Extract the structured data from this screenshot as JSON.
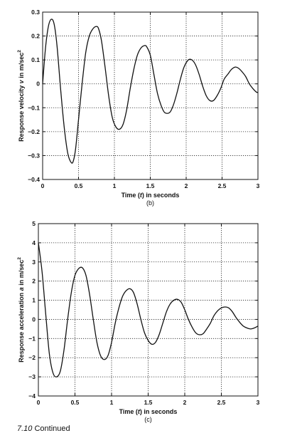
{
  "chart_data": [
    {
      "type": "line",
      "id": "b",
      "xlabel_prefix": "Time (",
      "xlabel_var": "t",
      "xlabel_suffix": ") in seconds",
      "sublabel": "(b)",
      "ylabel_prefix": "Response velocity ",
      "ylabel_var": "v",
      "ylabel_suffix": " in m/sec",
      "ylabel_sup": "2",
      "xlim": [
        0,
        3
      ],
      "ylim": [
        -0.4,
        0.3
      ],
      "xticks": [
        0,
        0.5,
        1,
        1.5,
        2,
        2.5,
        3
      ],
      "xticklabels": [
        "0",
        "0.5",
        "1",
        "1.5",
        "2",
        "2.5",
        "3"
      ],
      "yticks": [
        -0.4,
        -0.3,
        -0.2,
        -0.1,
        0,
        0.1,
        0.2,
        0.3
      ],
      "yticklabels": [
        "−0.4",
        "−0.3",
        "−0.2",
        "−0.1",
        "0",
        "0.1",
        "0.2",
        "0.3"
      ],
      "grid": true,
      "series": [
        {
          "x": [
            0,
            0.04,
            0.08,
            0.12,
            0.16,
            0.2,
            0.25,
            0.3,
            0.35,
            0.4,
            0.43,
            0.46,
            0.5,
            0.55,
            0.6,
            0.65,
            0.7,
            0.75,
            0.78,
            0.82,
            0.87,
            0.92,
            0.97,
            1.02,
            1.07,
            1.12,
            1.17,
            1.22,
            1.27,
            1.32,
            1.37,
            1.42,
            1.45,
            1.5,
            1.55,
            1.6,
            1.65,
            1.7,
            1.77,
            1.82,
            1.87,
            1.92,
            1.97,
            2.03,
            2.08,
            2.13,
            2.18,
            2.23,
            2.28,
            2.33,
            2.38,
            2.43,
            2.48,
            2.53,
            2.58,
            2.63,
            2.68,
            2.73,
            2.78,
            2.83,
            2.88,
            2.93,
            2.98,
            3.0
          ],
          "y": [
            0.0,
            0.15,
            0.24,
            0.27,
            0.25,
            0.16,
            -0.02,
            -0.18,
            -0.29,
            -0.33,
            -0.32,
            -0.27,
            -0.15,
            0.0,
            0.13,
            0.2,
            0.23,
            0.24,
            0.23,
            0.18,
            0.07,
            -0.05,
            -0.14,
            -0.18,
            -0.19,
            -0.17,
            -0.11,
            -0.02,
            0.06,
            0.12,
            0.15,
            0.16,
            0.155,
            0.12,
            0.04,
            -0.04,
            -0.09,
            -0.12,
            -0.12,
            -0.09,
            -0.04,
            0.02,
            0.07,
            0.1,
            0.1,
            0.08,
            0.04,
            -0.01,
            -0.05,
            -0.07,
            -0.07,
            -0.05,
            -0.02,
            0.02,
            0.04,
            0.06,
            0.07,
            0.065,
            0.05,
            0.03,
            0.0,
            -0.02,
            -0.035,
            -0.035
          ]
        }
      ]
    },
    {
      "type": "line",
      "id": "c",
      "xlabel_prefix": "Time (",
      "xlabel_var": "t",
      "xlabel_suffix": ") in seconds",
      "sublabel": "(c)",
      "ylabel_prefix": "Response acceleration ",
      "ylabel_var": "a",
      "ylabel_suffix": " in m/sec",
      "ylabel_sup": "2",
      "xlim": [
        0,
        3
      ],
      "ylim": [
        -4,
        5
      ],
      "xticks": [
        0,
        0.5,
        1,
        1.5,
        2,
        2.5,
        3
      ],
      "xticklabels": [
        "0",
        "0.5",
        "1",
        "1.5",
        "2",
        "2.5",
        "3"
      ],
      "yticks": [
        -4,
        -3,
        -2,
        -1,
        0,
        1,
        2,
        3,
        4,
        5
      ],
      "yticklabels": [
        "−4",
        "−3",
        "−2",
        "−1",
        "0",
        "1",
        "2",
        "3",
        "4",
        "5"
      ],
      "grid": true,
      "series": [
        {
          "x": [
            0,
            0.05,
            0.1,
            0.15,
            0.2,
            0.25,
            0.3,
            0.35,
            0.4,
            0.45,
            0.5,
            0.55,
            0.6,
            0.65,
            0.7,
            0.75,
            0.8,
            0.85,
            0.9,
            0.95,
            1.0,
            1.05,
            1.1,
            1.15,
            1.2,
            1.25,
            1.3,
            1.35,
            1.4,
            1.45,
            1.5,
            1.55,
            1.6,
            1.65,
            1.7,
            1.75,
            1.8,
            1.85,
            1.9,
            1.95,
            2.0,
            2.05,
            2.1,
            2.15,
            2.2,
            2.25,
            2.3,
            2.35,
            2.4,
            2.45,
            2.5,
            2.55,
            2.6,
            2.65,
            2.7,
            2.75,
            2.8,
            2.85,
            2.9,
            2.95,
            3.0
          ],
          "y": [
            4.0,
            2.5,
            0.3,
            -1.8,
            -2.8,
            -3.0,
            -2.7,
            -1.6,
            0.0,
            1.4,
            2.3,
            2.65,
            2.7,
            2.3,
            1.3,
            0.0,
            -1.2,
            -1.9,
            -2.1,
            -1.9,
            -1.2,
            -0.2,
            0.6,
            1.2,
            1.5,
            1.6,
            1.4,
            0.8,
            0.0,
            -0.7,
            -1.1,
            -1.3,
            -1.2,
            -0.8,
            -0.2,
            0.4,
            0.8,
            1.0,
            1.05,
            0.9,
            0.5,
            0.0,
            -0.4,
            -0.7,
            -0.8,
            -0.75,
            -0.5,
            -0.2,
            0.2,
            0.45,
            0.6,
            0.65,
            0.6,
            0.4,
            0.1,
            -0.15,
            -0.35,
            -0.45,
            -0.5,
            -0.45,
            -0.35
          ]
        }
      ]
    }
  ],
  "caption": {
    "number": "7.10",
    "text": " Continued"
  }
}
